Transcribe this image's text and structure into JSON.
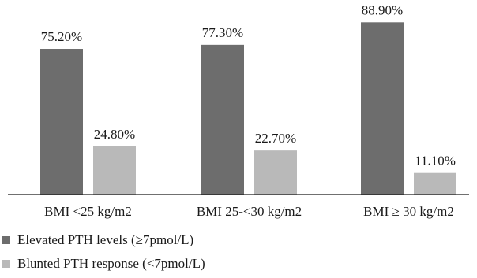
{
  "chart_data": {
    "type": "bar",
    "categories": [
      "BMI <25 kg/m2",
      "BMI 25-<30 kg/m2",
      "BMI ≥ 30 kg/m2"
    ],
    "series": [
      {
        "name": "Elevated PTH levels (≥7pmol/L)",
        "color": "#6d6d6d",
        "values": [
          75.2,
          77.3,
          88.9
        ],
        "labels": [
          "75.20%",
          "77.30%",
          "88.90%"
        ]
      },
      {
        "name": "Blunted PTH response (<7pmol/L)",
        "color": "#b9b9b9",
        "values": [
          24.8,
          22.7,
          11.1
        ],
        "labels": [
          "24.80%",
          "22.70%",
          "11.10%"
        ]
      }
    ],
    "ylim": [
      0,
      100
    ],
    "grid": false,
    "legend": "bottom-left"
  }
}
